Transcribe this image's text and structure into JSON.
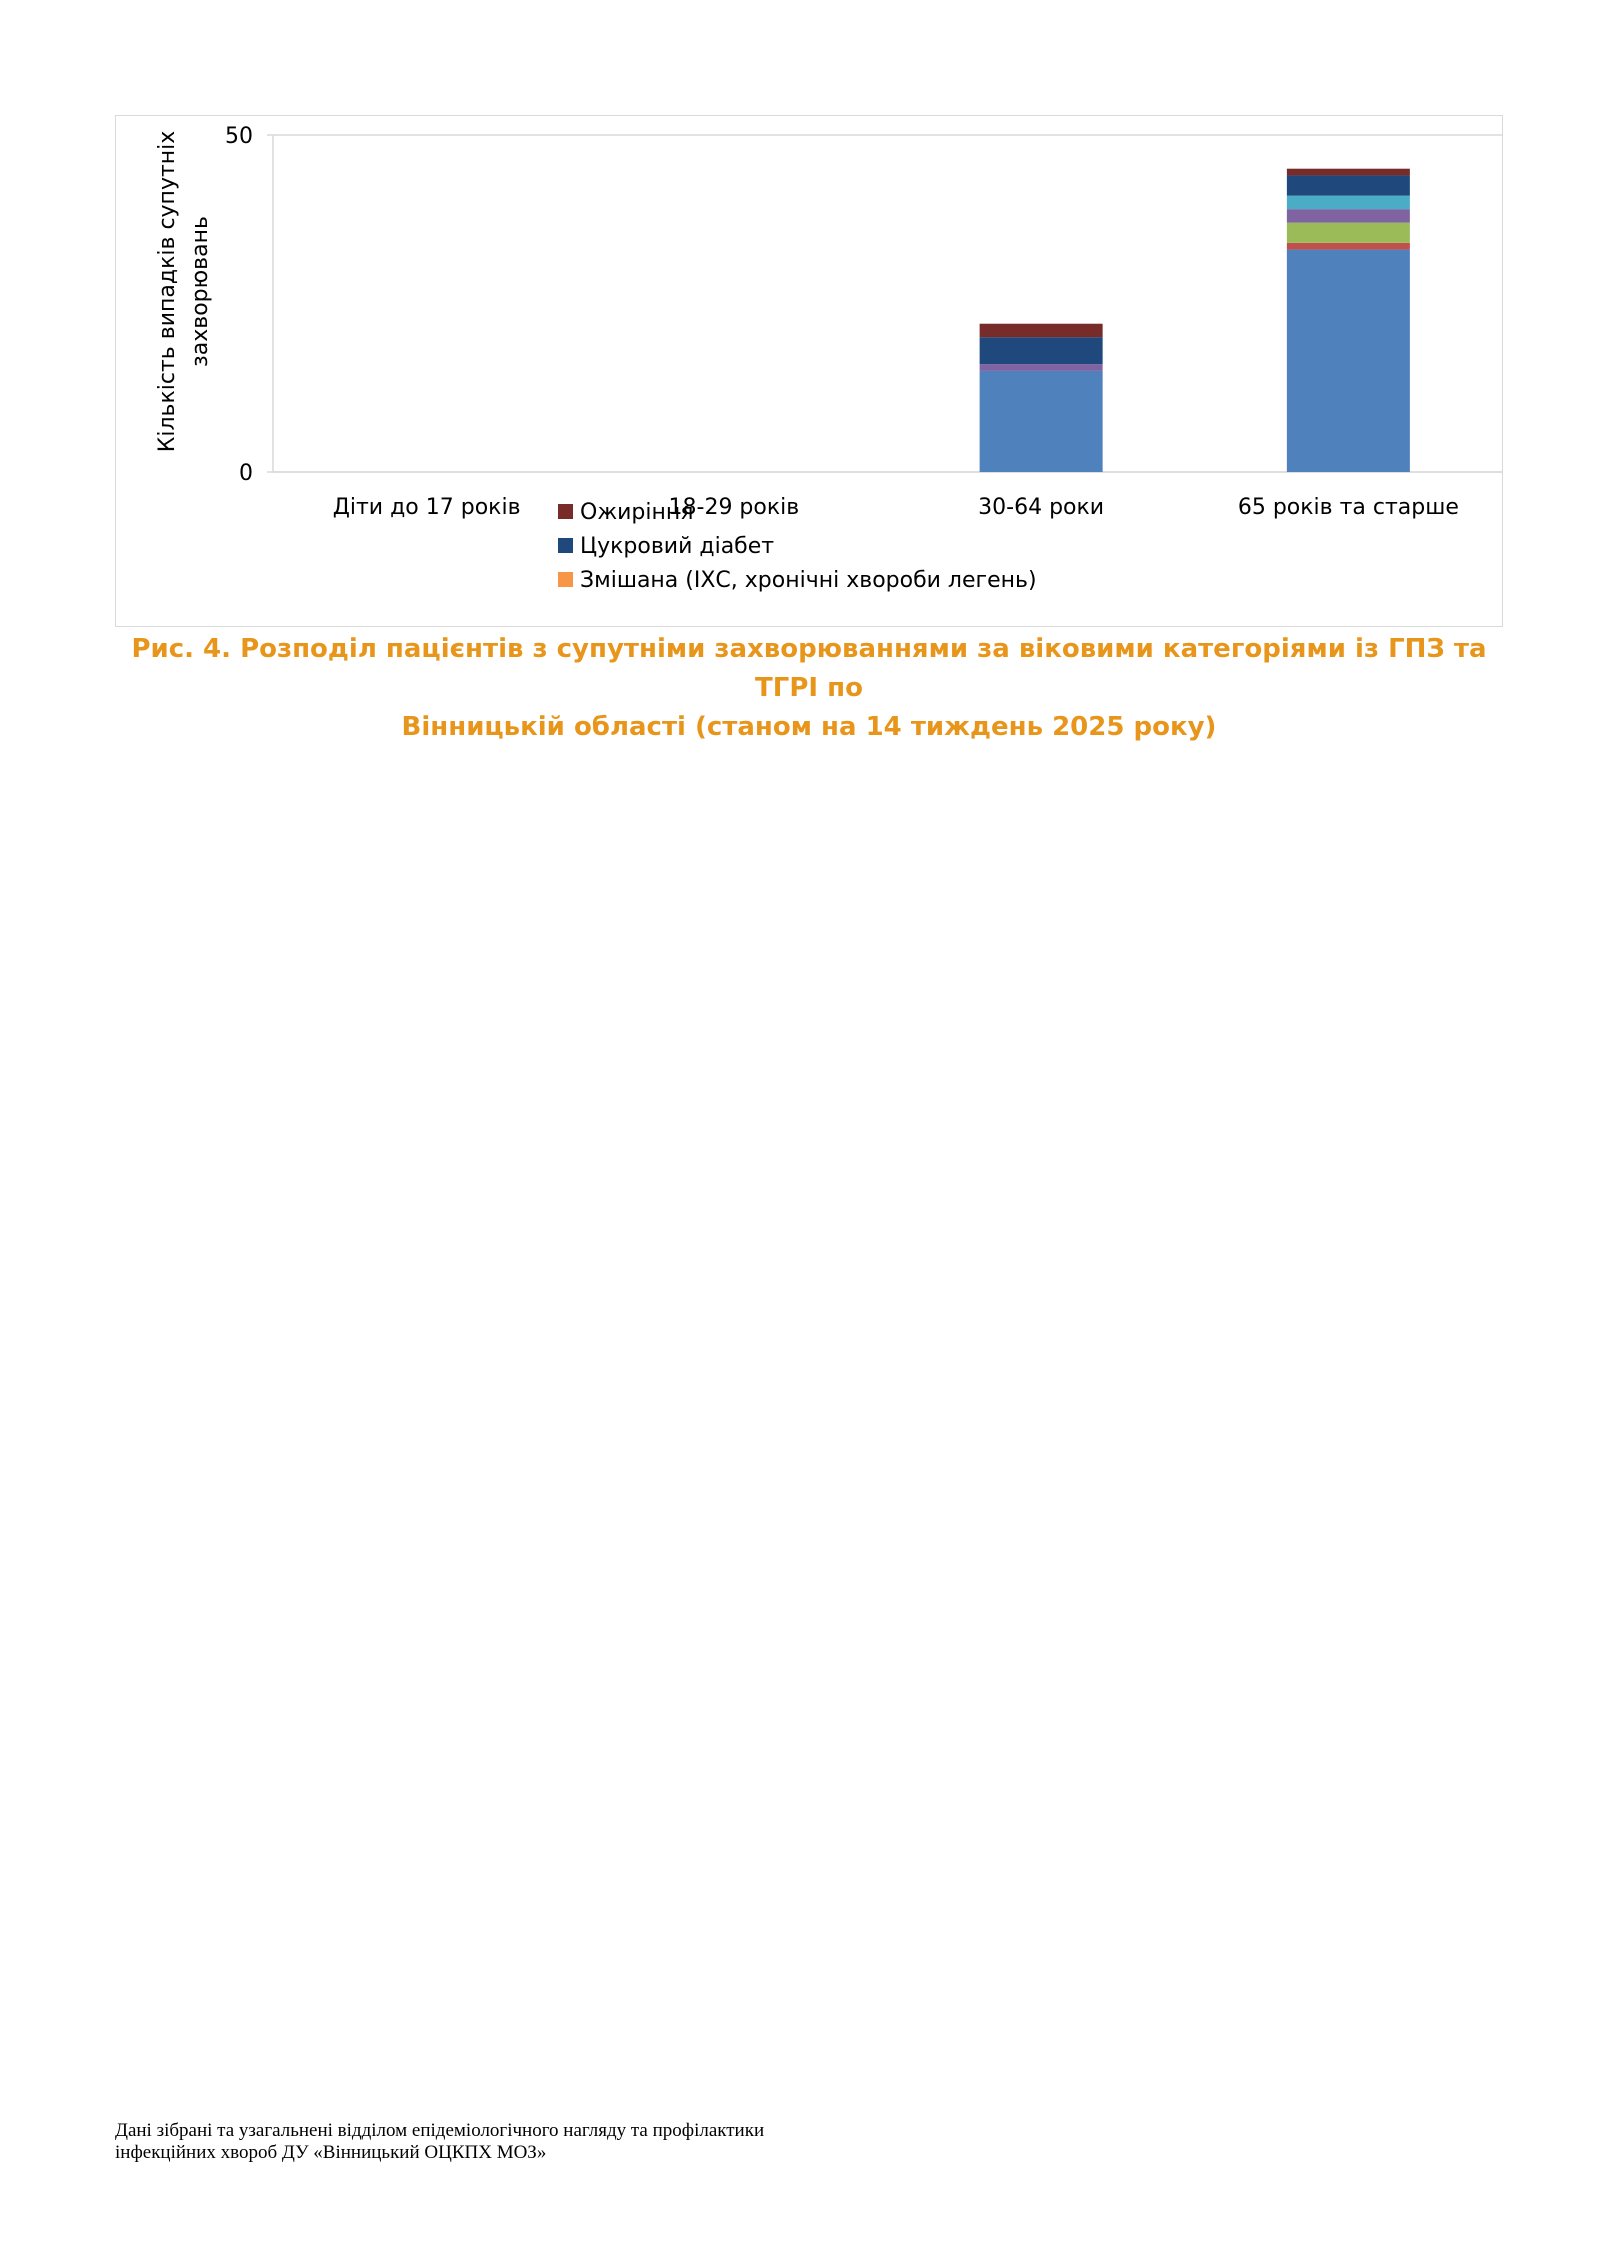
{
  "chart_data": {
    "type": "bar",
    "stacked": true,
    "categories": [
      "Діти до 17 років",
      "18-29 років",
      "30-64 роки",
      "65 років та старше"
    ],
    "ylabel": [
      "Кількість випадків супутніх",
      "захворювань"
    ],
    "ylim": [
      0,
      50
    ],
    "yticks": [
      0,
      50
    ],
    "grid": false,
    "legend_position": "bottom",
    "series": [
      {
        "color": "#4f81bd",
        "values": [
          0,
          0,
          15,
          33
        ]
      },
      {
        "color": "#c0504d",
        "values": [
          0,
          0,
          0,
          1
        ]
      },
      {
        "color": "#9bbb59",
        "values": [
          0,
          0,
          0,
          3
        ]
      },
      {
        "color": "#8064a2",
        "values": [
          0,
          0,
          1,
          2
        ]
      },
      {
        "color": "#4bacc6",
        "values": [
          0,
          0,
          0,
          2
        ]
      },
      {
        "color": "#f79646",
        "name": "Змішана (ІХС, хронічні хвороби легень)",
        "values": [
          0,
          0,
          0,
          0
        ]
      },
      {
        "color": "#1f497d",
        "name": "Цукровий діабет",
        "values": [
          0,
          0,
          4,
          3
        ]
      },
      {
        "color": "#772c2a",
        "name": "Ожиріння",
        "values": [
          0,
          0,
          2,
          1
        ]
      }
    ],
    "legend_order": [
      7,
      6,
      5
    ]
  },
  "caption": {
    "line1": "Рис. 4. Розподіл пацієнтів з супутніми захворюваннями за віковими категоріями із ГПЗ та ТГРІ по",
    "line2": "Вінницькій області  (станом на 14 тиждень 2025 року)"
  },
  "footer": {
    "line1": "Дані зібрані та узагальнені відділом епідеміологічного нагляду та профілактики",
    "line2": "інфекційних хвороб ДУ «Вінницький ОЦКПХ МОЗ»"
  }
}
